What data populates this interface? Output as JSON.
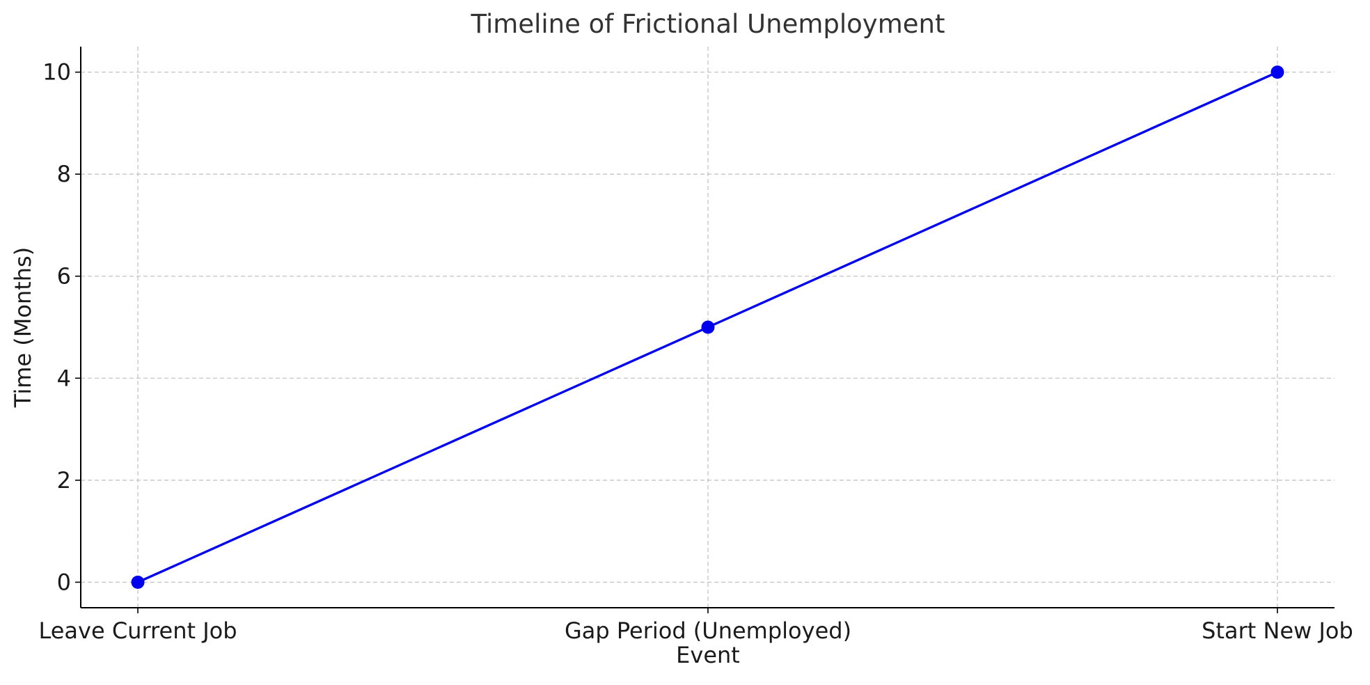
{
  "chart_data": {
    "type": "line",
    "title": "Timeline of Frictional Unemployment",
    "xlabel": "Event",
    "ylabel": "Time (Months)",
    "categories": [
      "Leave Current Job",
      "Gap Period (Unemployed)",
      "Start New Job"
    ],
    "series": [
      {
        "values": [
          0,
          5,
          10
        ],
        "color": "#0000ee",
        "marker": "circle"
      }
    ],
    "ylim": [
      -0.5,
      10.5
    ],
    "yticks": [
      0,
      2,
      4,
      6,
      8,
      10
    ],
    "grid": true,
    "grid_style": "dashed",
    "legend": "none"
  }
}
